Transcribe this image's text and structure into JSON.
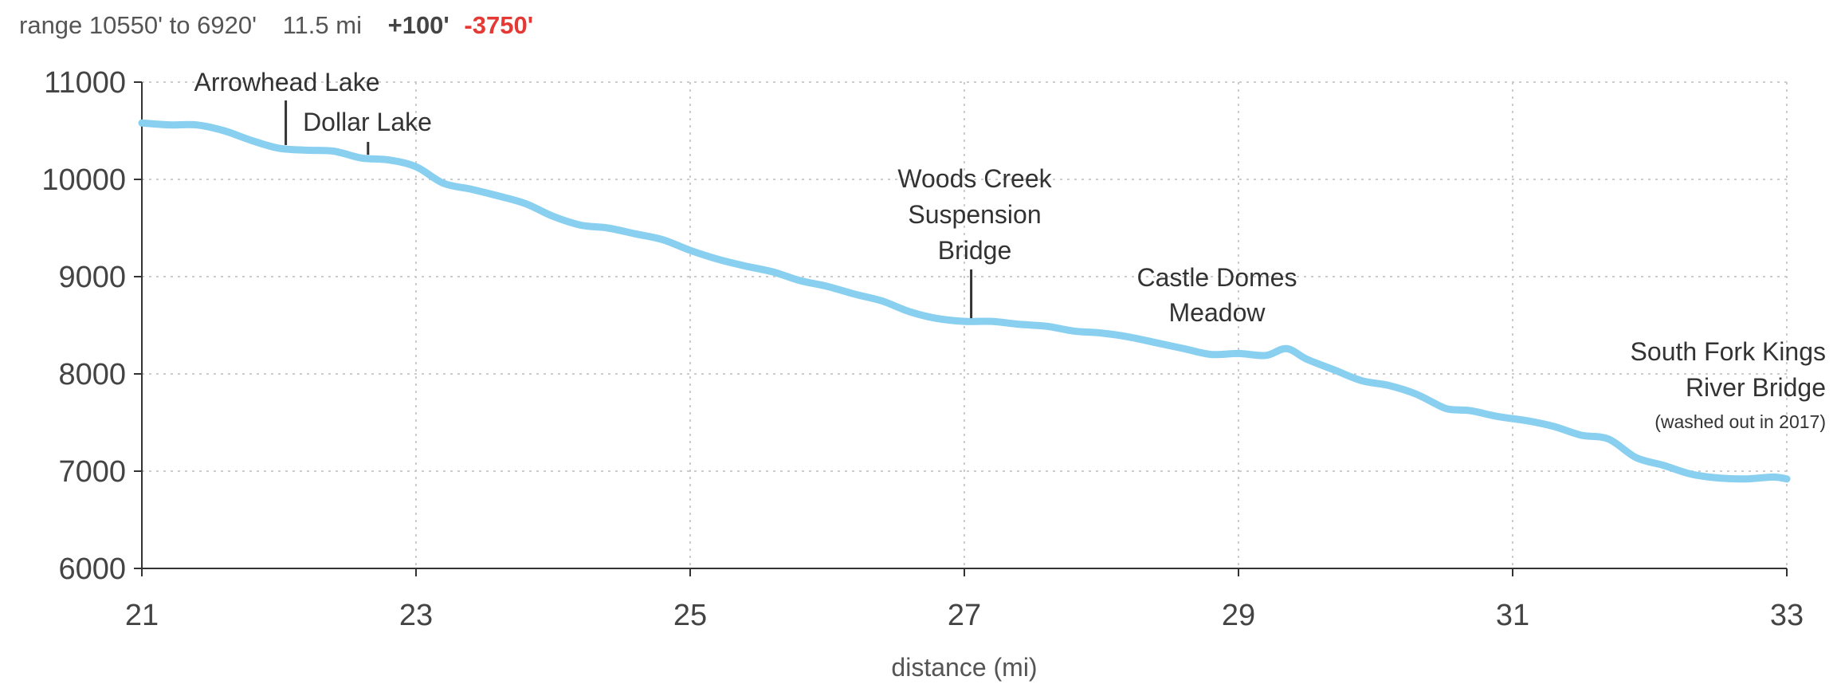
{
  "summary": {
    "range": "range 10550' to 6920'",
    "distance": "11.5 mi",
    "gain": "+100'",
    "loss": "-3750'"
  },
  "colors": {
    "line": "#89cff0",
    "loss": "#e53935",
    "grid": "#cccccc",
    "axis": "#333333"
  },
  "chart_data": {
    "type": "line",
    "title": "",
    "xlabel": "distance (mi)",
    "ylabel": "",
    "xlim": [
      21,
      33
    ],
    "ylim": [
      6000,
      11000
    ],
    "xticks": [
      21,
      23,
      25,
      27,
      29,
      31,
      33
    ],
    "xtick_labels": [
      "21",
      "23",
      "25",
      "27",
      "29",
      "31",
      "33"
    ],
    "yticks": [
      6000,
      7000,
      8000,
      9000,
      10000,
      11000
    ],
    "ytick_labels": [
      "6000",
      "7000",
      "8000",
      "9000",
      "10000",
      "11000"
    ],
    "grid": true,
    "series": [
      {
        "x": [
          21.0,
          21.2,
          21.4,
          21.6,
          21.8,
          22.0,
          22.2,
          22.4,
          22.6,
          22.8,
          23.0,
          23.2,
          23.4,
          23.6,
          23.8,
          24.0,
          24.2,
          24.4,
          24.6,
          24.8,
          25.0,
          25.2,
          25.4,
          25.6,
          25.8,
          26.0,
          26.2,
          26.4,
          26.6,
          26.8,
          27.0,
          27.2,
          27.4,
          27.6,
          27.8,
          28.0,
          28.2,
          28.4,
          28.6,
          28.8,
          29.0,
          29.2,
          29.35,
          29.5,
          29.7,
          29.9,
          30.1,
          30.3,
          30.5,
          30.6,
          30.7,
          30.9,
          31.1,
          31.3,
          31.5,
          31.7,
          31.9,
          32.1,
          32.3,
          32.5,
          32.7,
          32.9,
          33.0
        ],
        "y": [
          10580,
          10560,
          10560,
          10500,
          10400,
          10320,
          10300,
          10290,
          10220,
          10200,
          10130,
          9960,
          9900,
          9830,
          9750,
          9620,
          9530,
          9500,
          9440,
          9380,
          9270,
          9180,
          9110,
          9050,
          8960,
          8900,
          8820,
          8750,
          8640,
          8570,
          8540,
          8540,
          8510,
          8490,
          8440,
          8420,
          8380,
          8320,
          8260,
          8200,
          8210,
          8190,
          8260,
          8150,
          8040,
          7930,
          7880,
          7790,
          7650,
          7630,
          7620,
          7560,
          7520,
          7460,
          7370,
          7330,
          7140,
          7060,
          6970,
          6930,
          6920,
          6940,
          6920
        ]
      }
    ],
    "annotations": [
      {
        "name": "arrowhead-lake",
        "lines": [
          "Arrowhead Lake"
        ],
        "x": 22.05,
        "y": 10320,
        "tick_top": 10830,
        "anchor": "middle",
        "dx": 0
      },
      {
        "name": "dollar-lake",
        "lines": [
          "Dollar Lake"
        ],
        "x": 22.65,
        "y": 10220,
        "tick_top": 10400,
        "anchor": "middle",
        "dx": 0
      },
      {
        "name": "woods-creek-bridge",
        "lines": [
          "Woods Creek",
          "Suspension",
          "Bridge"
        ],
        "x": 27.05,
        "y": 8540,
        "tick_top": 9060,
        "anchor": "middle",
        "dx": 0
      },
      {
        "name": "castle-domes-meadow",
        "lines": [
          "Castle Domes",
          "Meadow"
        ],
        "x": 28.8,
        "y": null,
        "tick_top": null,
        "anchor": "middle",
        "dx": 0
      },
      {
        "name": "south-fork-kings-bridge",
        "lines": [
          "South Fork Kings",
          "River Bridge"
        ],
        "sub": "(washed out in 2017)",
        "x": 32.9,
        "y": null,
        "tick_top": null,
        "anchor": "end",
        "dx": 0
      }
    ]
  }
}
